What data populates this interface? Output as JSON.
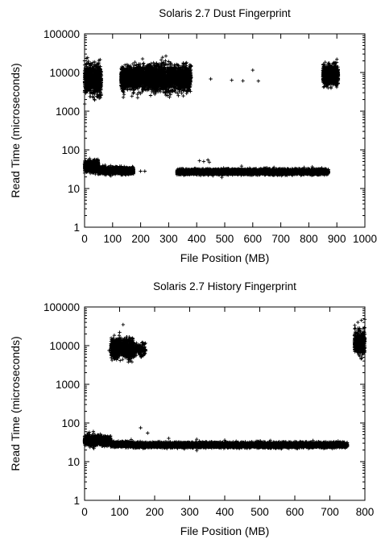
{
  "chart_data": [
    {
      "type": "scatter",
      "title": "Solaris 2.7 Dust Fingerprint",
      "xlabel": "File Position (MB)",
      "ylabel": "Read Time (microseconds)",
      "xlim": [
        0,
        1000
      ],
      "ylim": [
        1,
        100000
      ],
      "yscale": "log",
      "marker": "+",
      "grid": false,
      "xticks": [
        "0",
        "100",
        "200",
        "300",
        "400",
        "500",
        "600",
        "700",
        "800",
        "900",
        "1000"
      ],
      "yticks": [
        "1",
        "10",
        "100",
        "1000",
        "10000",
        "100000"
      ],
      "clusters": [
        {
          "x_range": [
            0,
            60
          ],
          "y_center": 6500,
          "y_spread_decades": 0.18,
          "density": "dense"
        },
        {
          "x_range": [
            130,
            380
          ],
          "y_center": 7200,
          "y_spread_decades": 0.15,
          "density": "dense"
        },
        {
          "x_range": [
            850,
            905
          ],
          "y_center": 8500,
          "y_spread_decades": 0.12,
          "density": "dense"
        },
        {
          "x_range": [
            0,
            50
          ],
          "y_center": 38,
          "y_spread_decades": 0.07,
          "density": "dense"
        },
        {
          "x_range": [
            50,
            175
          ],
          "y_center": 29,
          "y_spread_decades": 0.04,
          "density": "dense"
        },
        {
          "x_range": [
            330,
            870
          ],
          "y_center": 27,
          "y_spread_decades": 0.03,
          "density": "dense"
        }
      ],
      "outliers": [
        [
          450,
          6800
        ],
        [
          525,
          6300
        ],
        [
          565,
          6100
        ],
        [
          600,
          11500
        ],
        [
          620,
          6000
        ],
        [
          880,
          13000
        ],
        [
          890,
          18000
        ],
        [
          900,
          22000
        ],
        [
          410,
          52
        ],
        [
          425,
          50
        ],
        [
          440,
          55
        ],
        [
          445,
          48
        ],
        [
          560,
          38
        ],
        [
          200,
          28
        ],
        [
          215,
          28
        ]
      ]
    },
    {
      "type": "scatter",
      "title": "Solaris 2.7 History Fingerprint",
      "xlabel": "File Position (MB)",
      "ylabel": "Read Time (microseconds)",
      "xlim": [
        0,
        800
      ],
      "ylim": [
        1,
        100000
      ],
      "yscale": "log",
      "marker": "+",
      "grid": false,
      "xticks": [
        "0",
        "100",
        "200",
        "300",
        "400",
        "500",
        "600",
        "700",
        "800"
      ],
      "yticks": [
        "1",
        "10",
        "100",
        "1000",
        "10000",
        "100000"
      ],
      "clusters": [
        {
          "x_range": [
            75,
            140
          ],
          "y_center": 8500,
          "y_spread_decades": 0.12,
          "density": "dense"
        },
        {
          "x_range": [
            140,
            175
          ],
          "y_center": 8000,
          "y_spread_decades": 0.08,
          "density": "sparse"
        },
        {
          "x_range": [
            770,
            800
          ],
          "y_center": 12000,
          "y_spread_decades": 0.15,
          "density": "dense"
        },
        {
          "x_range": [
            0,
            75
          ],
          "y_center": 35,
          "y_spread_decades": 0.06,
          "density": "dense"
        },
        {
          "x_range": [
            75,
            140
          ],
          "y_center": 28,
          "y_spread_decades": 0.03,
          "density": "dense"
        },
        {
          "x_range": [
            140,
            750
          ],
          "y_center": 27,
          "y_spread_decades": 0.03,
          "density": "dense"
        }
      ],
      "outliers": [
        [
          85,
          8000
        ],
        [
          70,
          7500
        ],
        [
          95,
          15000
        ],
        [
          100,
          22000
        ],
        [
          110,
          35000
        ],
        [
          140,
          12000
        ],
        [
          130,
          4000
        ],
        [
          780,
          40000
        ],
        [
          790,
          45000
        ],
        [
          800,
          48000
        ],
        [
          25,
          60
        ],
        [
          160,
          75
        ],
        [
          180,
          55
        ],
        [
          240,
          40
        ],
        [
          320,
          38
        ],
        [
          400,
          36
        ],
        [
          600,
          33
        ]
      ]
    }
  ]
}
